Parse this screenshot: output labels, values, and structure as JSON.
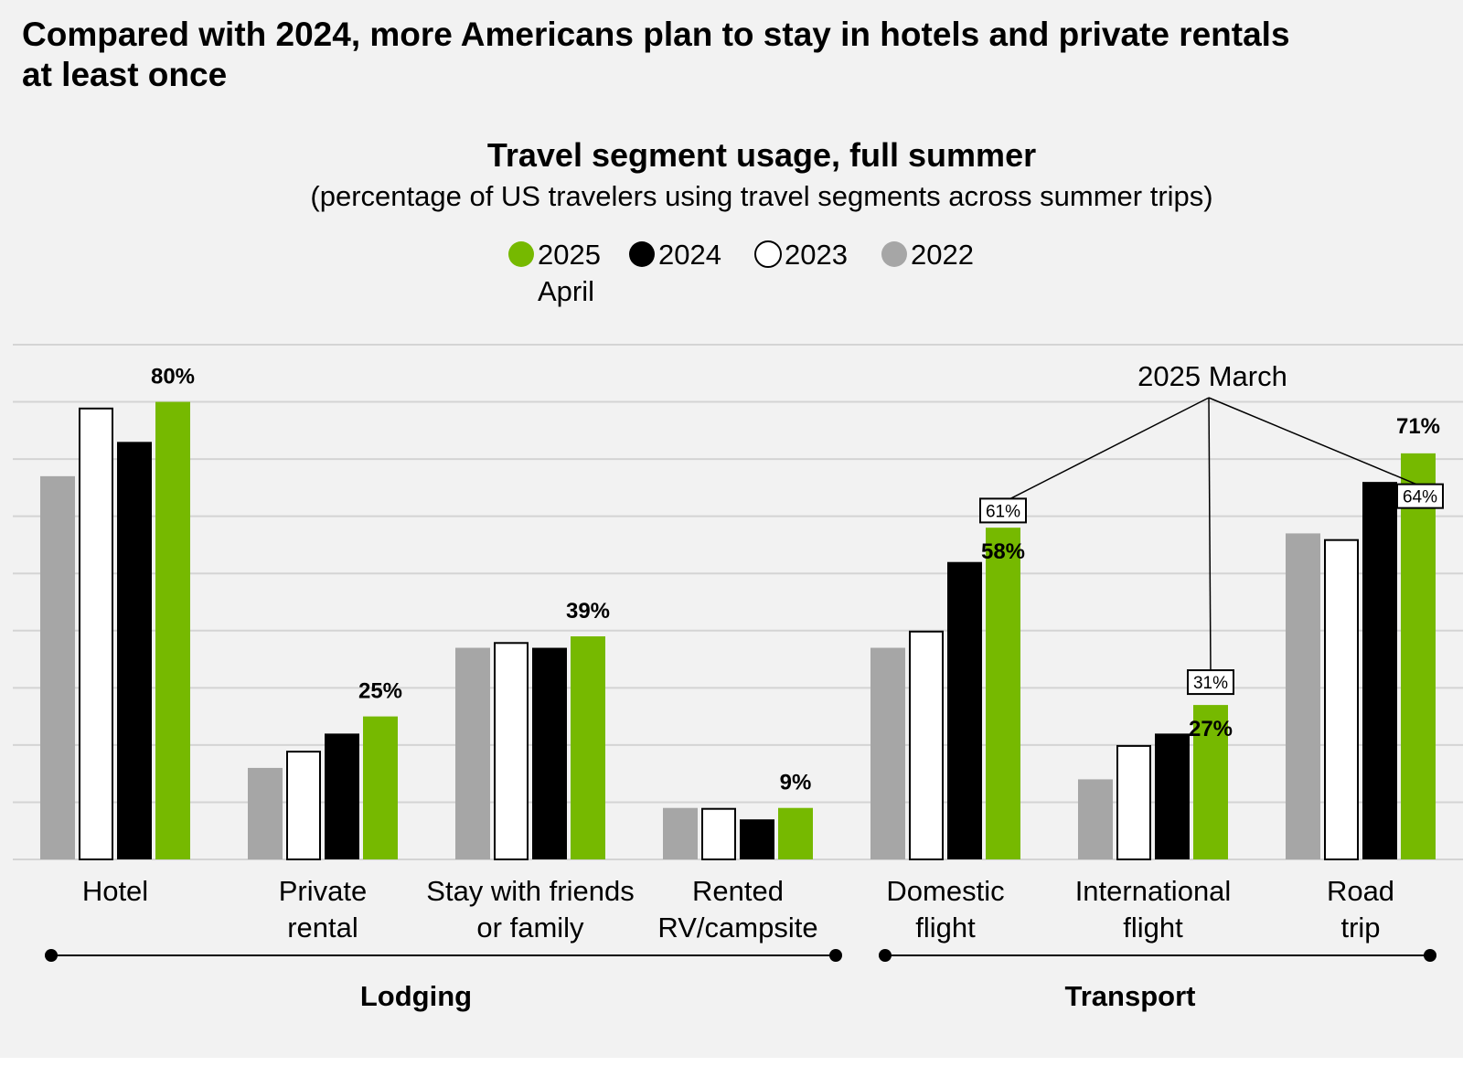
{
  "headline": "Compared with 2024, more Americans plan to stay in hotels and private rentals at least once",
  "chart_data": {
    "type": "bar",
    "title": "Travel segment usage, full summer",
    "subtitle": "(percentage of US travelers using travel segments across summer trips)",
    "ylim": [
      0,
      90
    ],
    "grid": true,
    "legend_position": "top-center",
    "legend": [
      {
        "label": "2025",
        "sublabel": "April",
        "color": "#76b900",
        "stroke": "none"
      },
      {
        "label": "2024",
        "color": "#000000",
        "stroke": "none"
      },
      {
        "label": "2023",
        "color": "#ffffff",
        "stroke": "#000000"
      },
      {
        "label": "2022",
        "color": "#a6a6a6",
        "stroke": "none"
      }
    ],
    "categories": [
      [
        "Hotel"
      ],
      [
        "Private",
        "rental"
      ],
      [
        "Stay with friends",
        "or family"
      ],
      [
        "Rented",
        "RV/campsite"
      ],
      [
        "Domestic",
        "flight"
      ],
      [
        "International",
        "flight"
      ],
      [
        "Road",
        "trip"
      ]
    ],
    "series": [
      {
        "name": "2022",
        "color": "#a6a6a6",
        "stroke": "none",
        "values": [
          67,
          16,
          37,
          9,
          37,
          14,
          57
        ]
      },
      {
        "name": "2023",
        "color": "#ffffff",
        "stroke": "#000000",
        "values": [
          79,
          19,
          38,
          9,
          40,
          20,
          56
        ]
      },
      {
        "name": "2024",
        "color": "#000000",
        "stroke": "none",
        "values": [
          73,
          22,
          37,
          7,
          52,
          22,
          66
        ]
      },
      {
        "name": "2025 April",
        "color": "#76b900",
        "stroke": "none",
        "values": [
          80,
          25,
          39,
          9,
          58,
          27,
          71
        ]
      }
    ],
    "value_labels": [
      "80%",
      "25%",
      "39%",
      "9%",
      "58%",
      "27%",
      "71%"
    ],
    "march_2025": {
      "label": "2025 March",
      "points": [
        {
          "category_index": 4,
          "value": 61,
          "text": "61%"
        },
        {
          "category_index": 5,
          "value": 31,
          "text": "31%"
        },
        {
          "category_index": 6,
          "value": 64,
          "text": "64%"
        }
      ]
    },
    "groups": [
      {
        "label": "Lodging",
        "from": 0,
        "to": 3
      },
      {
        "label": "Transport",
        "from": 4,
        "to": 6
      }
    ]
  }
}
